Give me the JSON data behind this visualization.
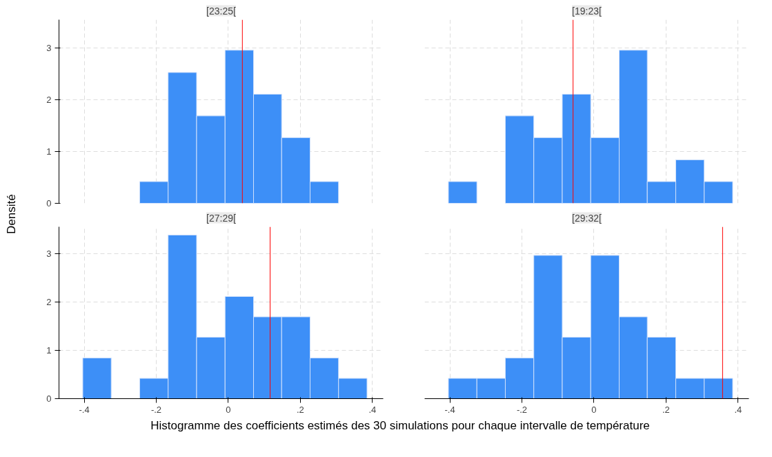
{
  "chart_data": [
    {
      "type": "histogram",
      "title": "[23:25[",
      "xlabel": "Histogramme des coefficients estimés des 30 simulations pour chaque intervalle de température",
      "ylabel": "Densité",
      "color": "#3d8ff7",
      "bins": [
        -0.246,
        -0.167,
        -0.088,
        -0.009,
        0.07,
        0.148,
        0.227,
        0.306
      ],
      "values": [
        0.42,
        2.53,
        1.69,
        2.96,
        2.11,
        1.27,
        0.42
      ],
      "xlim": [
        -0.47,
        0.43
      ],
      "ylim": [
        0,
        3.55
      ],
      "xticks": [
        -0.4,
        -0.2,
        0,
        0.2,
        0.4
      ],
      "yticks": [
        0,
        1,
        2,
        3
      ],
      "grid": true,
      "tick_labels": "y",
      "ref_lines": [
        {
          "axis": "x",
          "value": 0.039,
          "color": "#ff0000"
        }
      ]
    },
    {
      "type": "histogram",
      "title": "[19:23[",
      "color": "#3d8ff7",
      "bins": [
        -0.404,
        -0.325,
        -0.246,
        -0.167,
        -0.088,
        -0.009,
        0.07,
        0.148,
        0.227,
        0.306,
        0.385
      ],
      "values": [
        0.42,
        0,
        1.69,
        1.27,
        2.11,
        1.27,
        2.96,
        0.42,
        0.84,
        0.42
      ],
      "xlim": [
        -0.47,
        0.43
      ],
      "ylim": [
        0,
        3.55
      ],
      "xticks": [
        -0.4,
        -0.2,
        0,
        0.2,
        0.4
      ],
      "yticks": [
        0,
        1,
        2,
        3
      ],
      "grid": true,
      "tick_labels": false,
      "ref_lines": [
        {
          "axis": "x",
          "value": -0.058,
          "color": "#ff0000"
        }
      ]
    },
    {
      "type": "histogram",
      "title": "[27:29[",
      "color": "#3d8ff7",
      "bins": [
        -0.404,
        -0.325,
        -0.246,
        -0.167,
        -0.088,
        -0.009,
        0.07,
        0.148,
        0.227,
        0.306,
        0.385
      ],
      "values": [
        0.84,
        0,
        0.42,
        3.38,
        1.27,
        2.11,
        1.69,
        1.69,
        0.84,
        0.42
      ],
      "xlim": [
        -0.47,
        0.43
      ],
      "ylim": [
        0,
        3.55
      ],
      "xticks": [
        {
          "value": -0.4,
          "label": "-.4"
        },
        {
          "value": -0.2,
          "label": "-.2"
        },
        0,
        {
          "value": 0.2,
          "label": ".2"
        },
        {
          "value": 0.4,
          "label": ".4"
        }
      ],
      "yticks": [
        0,
        1,
        2,
        3
      ],
      "grid": true,
      "ref_lines": [
        {
          "axis": "x",
          "value": 0.116,
          "color": "#ff0000"
        }
      ]
    },
    {
      "type": "histogram",
      "title": "[29:32[",
      "color": "#3d8ff7",
      "bins": [
        -0.404,
        -0.325,
        -0.246,
        -0.167,
        -0.088,
        -0.009,
        0.07,
        0.148,
        0.227,
        0.306,
        0.385
      ],
      "values": [
        0.42,
        0.42,
        0.84,
        2.96,
        1.27,
        2.96,
        1.69,
        1.27,
        0.42,
        0.42
      ],
      "xlim": [
        -0.47,
        0.43
      ],
      "ylim": [
        0,
        3.55
      ],
      "xticks": [
        {
          "value": -0.4,
          "label": "-.4"
        },
        {
          "value": -0.2,
          "label": "-.2"
        },
        0,
        {
          "value": 0.2,
          "label": ".2"
        },
        {
          "value": 0.4,
          "label": ".4"
        }
      ],
      "yticks": [
        0,
        1,
        2,
        3
      ],
      "grid": true,
      "tick_labels": "x",
      "ref_lines": [
        {
          "axis": "x",
          "value": 0.357,
          "color": "#ff0000"
        }
      ]
    }
  ]
}
